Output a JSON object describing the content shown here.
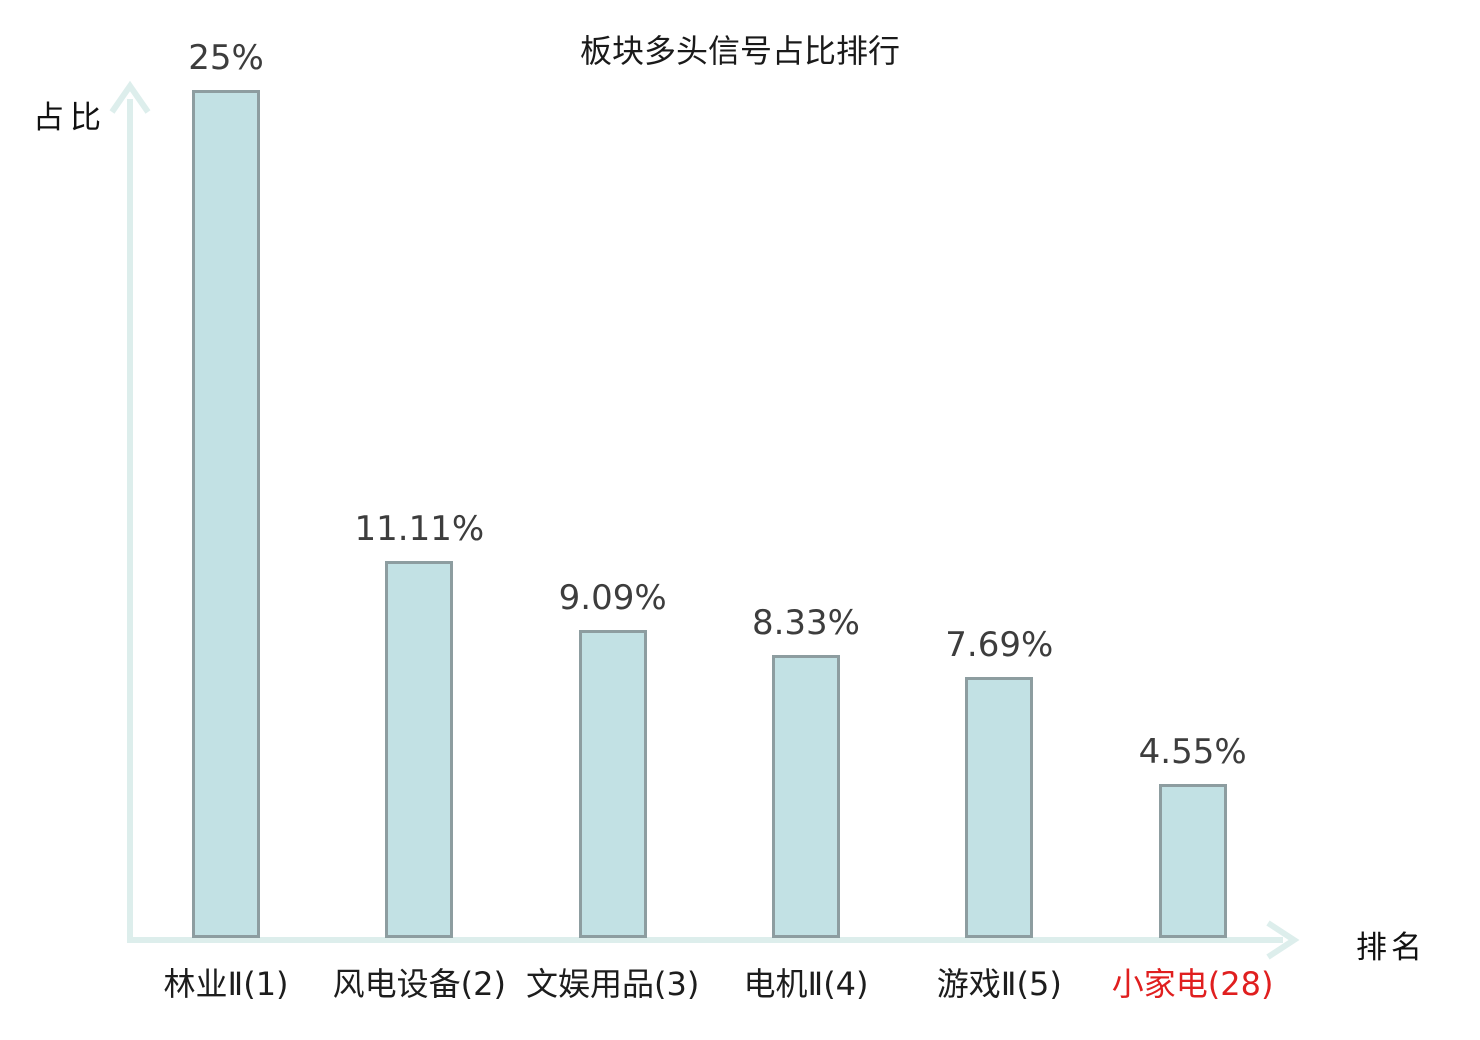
{
  "chart_data": {
    "type": "bar",
    "title": "板块多头信号占比排行",
    "xlabel": "排名",
    "ylabel": "占比",
    "categories": [
      "林业Ⅱ(1)",
      "风电设备(2)",
      "文娱用品(3)",
      "电机Ⅱ(4)",
      "游戏Ⅱ(5)",
      "小家电(28)"
    ],
    "values": [
      25,
      11.11,
      9.09,
      8.33,
      7.69,
      4.55
    ],
    "value_labels": [
      "25%",
      "11.11%",
      "9.09%",
      "8.33%",
      "7.69%",
      "4.55%"
    ],
    "highlight_index": 5,
    "ylim": [
      0,
      25
    ],
    "grid": false,
    "legend": false,
    "colors": {
      "bar_fill": "#c2e1e4",
      "bar_border": "#8d9da0",
      "axis": "#ddeeec",
      "value_label": "#3d3d3d",
      "category_label": "#1d1d1d",
      "highlight": "#e01f1f",
      "title": "#1a1a1a"
    }
  }
}
